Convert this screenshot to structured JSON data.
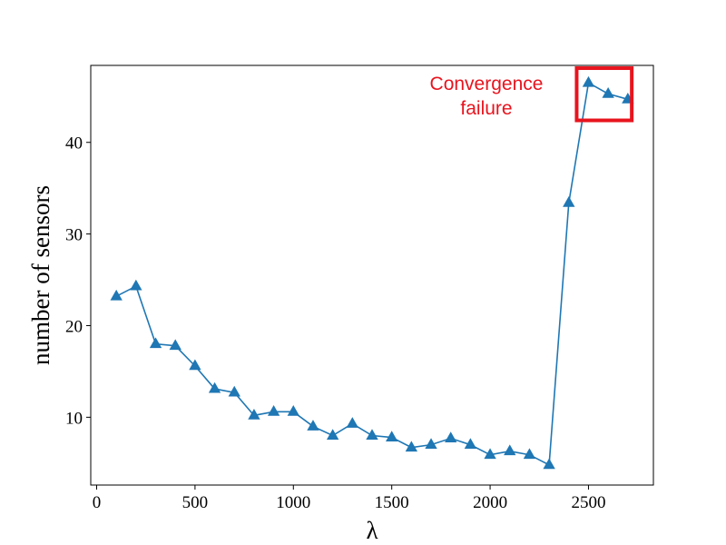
{
  "chart_data": {
    "type": "line",
    "xlabel": "λ",
    "ylabel": "number of sensors",
    "xlim": [
      -30,
      2830
    ],
    "ylim": [
      2.6,
      48.4
    ],
    "xticks": [
      0,
      500,
      1000,
      1500,
      2000,
      2500
    ],
    "yticks": [
      10,
      20,
      30,
      40
    ],
    "grid": false,
    "marker": "triangle-up",
    "series": [
      {
        "color": "#1f77b4",
        "x": [
          100,
          200,
          300,
          400,
          500,
          600,
          700,
          800,
          900,
          1000,
          1100,
          1200,
          1300,
          1400,
          1500,
          1600,
          1700,
          1800,
          1900,
          2000,
          2100,
          2200,
          2300,
          2400,
          2500,
          2600,
          2700
        ],
        "y": [
          23.2,
          24.3,
          18.0,
          17.8,
          15.6,
          13.1,
          12.7,
          10.2,
          10.6,
          10.6,
          9.0,
          8.0,
          9.3,
          8.0,
          7.8,
          6.7,
          7.0,
          7.7,
          7.0,
          5.9,
          6.3,
          5.9,
          4.8,
          33.4,
          46.5,
          45.3,
          44.7
        ]
      }
    ],
    "annotation": {
      "lines": [
        "Convergence",
        "failure"
      ],
      "color": "#e8141e",
      "box_color": "#e8141e",
      "box_x_range": [
        2440,
        2720
      ],
      "box_y_range": [
        42.4,
        48.1
      ]
    }
  }
}
